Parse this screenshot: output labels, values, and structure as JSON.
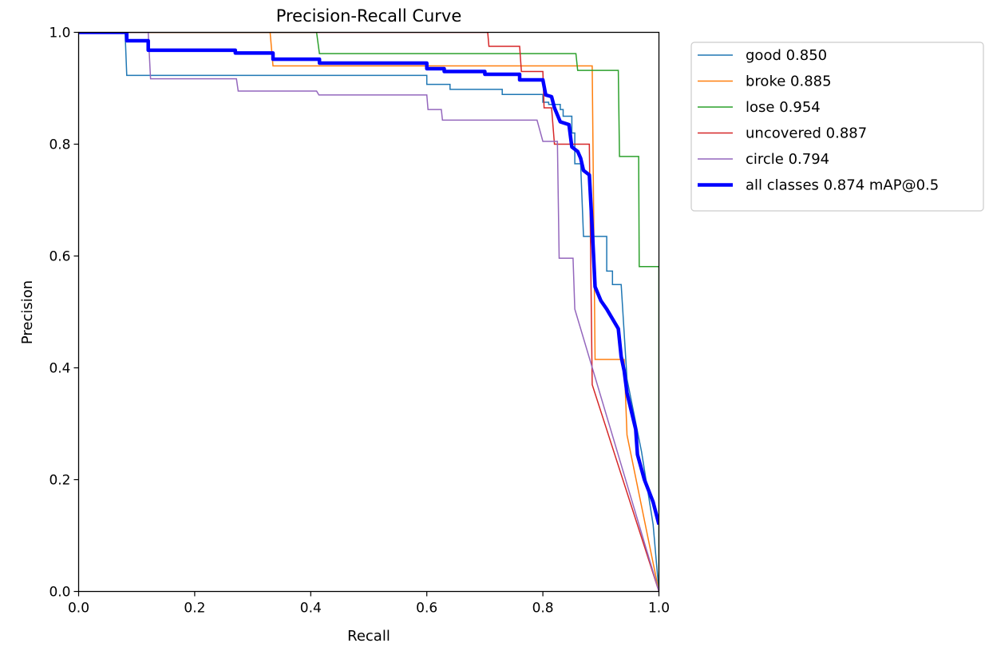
{
  "chart_data": {
    "type": "line",
    "title": "Precision-Recall Curve",
    "xlabel": "Recall",
    "ylabel": "Precision",
    "xlim": [
      0,
      1
    ],
    "ylim": [
      0,
      1
    ],
    "xticks": [
      "0.0",
      "0.2",
      "0.4",
      "0.6",
      "0.8",
      "1.0"
    ],
    "yticks": [
      "0.0",
      "0.2",
      "0.4",
      "0.6",
      "0.8",
      "1.0"
    ],
    "legend_position": "outside-upper-right",
    "series": [
      {
        "name": "good",
        "label": "good 0.850",
        "color": "#1f77b4",
        "points": [
          [
            0,
            1
          ],
          [
            0.08,
            1
          ],
          [
            0.083,
            0.923
          ],
          [
            0.6,
            0.923
          ],
          [
            0.6,
            0.907
          ],
          [
            0.64,
            0.907
          ],
          [
            0.64,
            0.898
          ],
          [
            0.73,
            0.898
          ],
          [
            0.73,
            0.889
          ],
          [
            0.8,
            0.889
          ],
          [
            0.8,
            0.875
          ],
          [
            0.81,
            0.875
          ],
          [
            0.81,
            0.871
          ],
          [
            0.83,
            0.871
          ],
          [
            0.83,
            0.862
          ],
          [
            0.835,
            0.862
          ],
          [
            0.835,
            0.85
          ],
          [
            0.85,
            0.85
          ],
          [
            0.85,
            0.82
          ],
          [
            0.855,
            0.82
          ],
          [
            0.855,
            0.765
          ],
          [
            0.865,
            0.765
          ],
          [
            0.87,
            0.635
          ],
          [
            0.91,
            0.635
          ],
          [
            0.91,
            0.573
          ],
          [
            0.92,
            0.573
          ],
          [
            0.92,
            0.549
          ],
          [
            0.935,
            0.549
          ],
          [
            0.945,
            0.38
          ],
          [
            0.97,
            0.25
          ],
          [
            0.99,
            0.12
          ],
          [
            1.0,
            0.0
          ]
        ]
      },
      {
        "name": "broke",
        "label": "broke 0.885",
        "color": "#ff7f0e",
        "points": [
          [
            0,
            1
          ],
          [
            0.33,
            1
          ],
          [
            0.335,
            0.94
          ],
          [
            0.885,
            0.94
          ],
          [
            0.89,
            0.415
          ],
          [
            0.94,
            0.415
          ],
          [
            0.945,
            0.28
          ],
          [
            1.0,
            0.0
          ]
        ]
      },
      {
        "name": "lose",
        "label": "lose 0.954",
        "color": "#2ca02c",
        "points": [
          [
            0,
            1
          ],
          [
            0.41,
            1
          ],
          [
            0.415,
            0.962
          ],
          [
            0.857,
            0.962
          ],
          [
            0.86,
            0.932
          ],
          [
            0.93,
            0.932
          ],
          [
            0.932,
            0.778
          ],
          [
            0.965,
            0.778
          ],
          [
            0.966,
            0.581
          ],
          [
            1.0,
            0.581
          ],
          [
            1.0,
            0.0
          ]
        ]
      },
      {
        "name": "uncovered",
        "label": "uncovered 0.887",
        "color": "#d62728",
        "points": [
          [
            0,
            1
          ],
          [
            0.705,
            1
          ],
          [
            0.707,
            0.975
          ],
          [
            0.76,
            0.975
          ],
          [
            0.763,
            0.93
          ],
          [
            0.8,
            0.93
          ],
          [
            0.802,
            0.865
          ],
          [
            0.815,
            0.865
          ],
          [
            0.82,
            0.8
          ],
          [
            0.88,
            0.8
          ],
          [
            0.885,
            0.37
          ],
          [
            1.0,
            0.0
          ]
        ]
      },
      {
        "name": "circle",
        "label": "circle 0.794",
        "color": "#9467bd",
        "points": [
          [
            0,
            1
          ],
          [
            0.12,
            1
          ],
          [
            0.124,
            0.917
          ],
          [
            0.272,
            0.917
          ],
          [
            0.275,
            0.895
          ],
          [
            0.41,
            0.895
          ],
          [
            0.414,
            0.888
          ],
          [
            0.6,
            0.888
          ],
          [
            0.602,
            0.862
          ],
          [
            0.625,
            0.862
          ],
          [
            0.627,
            0.843
          ],
          [
            0.79,
            0.843
          ],
          [
            0.8,
            0.805
          ],
          [
            0.825,
            0.805
          ],
          [
            0.828,
            0.596
          ],
          [
            0.852,
            0.596
          ],
          [
            0.855,
            0.505
          ],
          [
            1.0,
            0.0
          ]
        ]
      },
      {
        "name": "all classes",
        "label": "all classes 0.874 mAP@0.5",
        "color": "#0000ff",
        "bold": true,
        "points": [
          [
            0,
            1
          ],
          [
            0.083,
            1
          ],
          [
            0.083,
            0.985
          ],
          [
            0.12,
            0.985
          ],
          [
            0.12,
            0.968
          ],
          [
            0.27,
            0.968
          ],
          [
            0.27,
            0.963
          ],
          [
            0.335,
            0.963
          ],
          [
            0.335,
            0.952
          ],
          [
            0.415,
            0.952
          ],
          [
            0.415,
            0.945
          ],
          [
            0.6,
            0.945
          ],
          [
            0.6,
            0.935
          ],
          [
            0.63,
            0.935
          ],
          [
            0.63,
            0.93
          ],
          [
            0.7,
            0.93
          ],
          [
            0.7,
            0.925
          ],
          [
            0.76,
            0.925
          ],
          [
            0.76,
            0.915
          ],
          [
            0.8,
            0.915
          ],
          [
            0.805,
            0.888
          ],
          [
            0.815,
            0.885
          ],
          [
            0.82,
            0.865
          ],
          [
            0.83,
            0.84
          ],
          [
            0.845,
            0.835
          ],
          [
            0.85,
            0.795
          ],
          [
            0.86,
            0.787
          ],
          [
            0.865,
            0.775
          ],
          [
            0.87,
            0.753
          ],
          [
            0.88,
            0.745
          ],
          [
            0.885,
            0.65
          ],
          [
            0.89,
            0.545
          ],
          [
            0.9,
            0.52
          ],
          [
            0.91,
            0.505
          ],
          [
            0.93,
            0.47
          ],
          [
            0.935,
            0.42
          ],
          [
            0.94,
            0.395
          ],
          [
            0.945,
            0.355
          ],
          [
            0.96,
            0.29
          ],
          [
            0.963,
            0.245
          ],
          [
            0.975,
            0.2
          ],
          [
            0.99,
            0.16
          ],
          [
            1.0,
            0.12
          ]
        ]
      }
    ]
  }
}
